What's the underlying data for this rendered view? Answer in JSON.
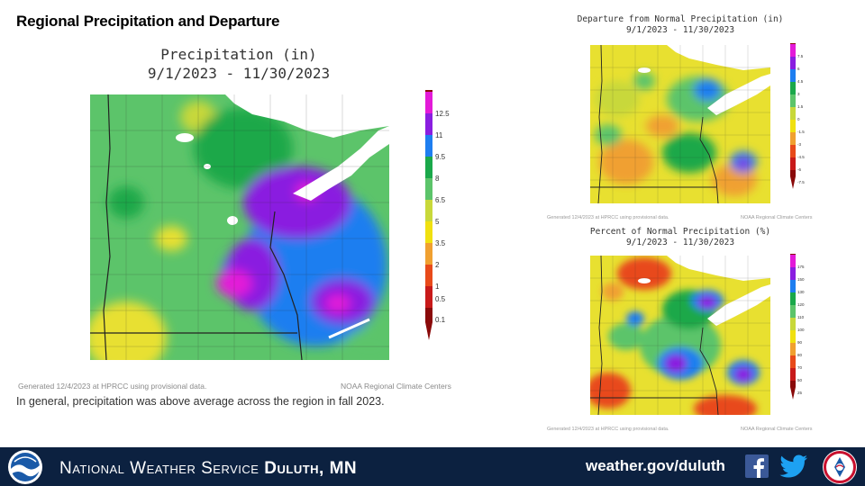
{
  "slide": {
    "title": "Regional Precipitation and Departure",
    "summary": "In general, precipitation was above average across the region in fall 2023."
  },
  "main_map": {
    "title_line1": "Precipitation (in)",
    "title_line2": "9/1/2023 - 11/30/2023",
    "credit_left": "Generated 12/4/2023 at HPRCC using provisional data.",
    "credit_right": "NOAA Regional Climate Centers",
    "legend": [
      "12.5",
      "11",
      "9.5",
      "8",
      "6.5",
      "5",
      "3.5",
      "2",
      "1",
      "0.5",
      "0.1"
    ]
  },
  "departure_map": {
    "title_line1": "Departure from Normal Precipitation (in)",
    "title_line2": "9/1/2023 - 11/30/2023",
    "credit_left": "Generated 12/4/2023 at HPRCC using provisional data.",
    "credit_right": "NOAA Regional Climate Centers",
    "legend": [
      "7.5",
      "6",
      "4.5",
      "3",
      "1.5",
      "0",
      "-1.5",
      "-3",
      "-4.5",
      "-6",
      "-7.5"
    ]
  },
  "percent_map": {
    "title_line1": "Percent of Normal Precipitation (%)",
    "title_line2": "9/1/2023 - 11/30/2023",
    "credit_left": "Generated 12/4/2023 at HPRCC using provisional data.",
    "credit_right": "NOAA Regional Climate Centers",
    "legend": [
      "175",
      "150",
      "130",
      "120",
      "110",
      "100",
      "90",
      "80",
      "70",
      "50",
      "25"
    ]
  },
  "footer": {
    "office_prefix": "National Weather Service",
    "office_name": "Duluth, MN",
    "url": "weather.gov/duluth",
    "icons": [
      "noaa-logo",
      "facebook-icon",
      "twitter-icon",
      "nws-logo"
    ]
  },
  "colors": {
    "footer_bg": "#0c2140",
    "lake_superior": "#ffffff",
    "precip_scale": [
      "#e31ad8",
      "#8a1ee0",
      "#1e7ef0",
      "#1aa84a",
      "#5cc46a",
      "#c8d83a",
      "#f0e010",
      "#f0a030",
      "#e84a1a",
      "#c81a1a",
      "#8a0a0a"
    ]
  }
}
